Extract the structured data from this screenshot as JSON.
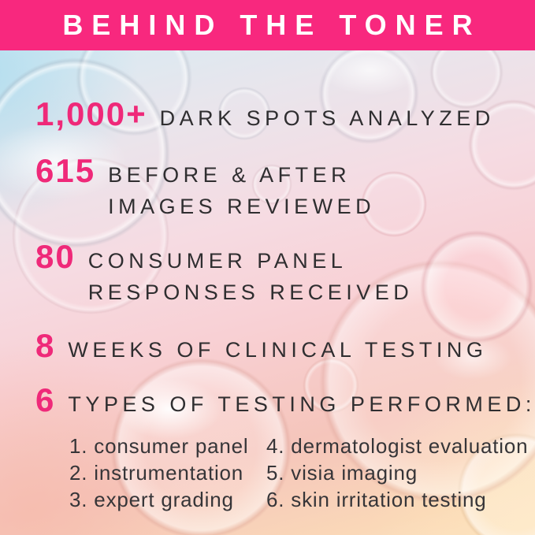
{
  "header": {
    "title": "BEHIND THE TONER"
  },
  "stats": [
    {
      "number": "1,000+",
      "lines": [
        "DARK SPOTS ANALYZED"
      ]
    },
    {
      "number": "615",
      "lines": [
        "BEFORE & AFTER",
        "IMAGES REVIEWED"
      ]
    },
    {
      "number": "80",
      "lines": [
        "CONSUMER PANEL",
        "RESPONSES RECEIVED"
      ]
    },
    {
      "number": "8",
      "lines": [
        "WEEKS OF CLINICAL TESTING"
      ]
    },
    {
      "number": "6",
      "lines": [
        "TYPES OF TESTING PERFORMED:"
      ]
    }
  ],
  "testing_types": {
    "column1": [
      "1. consumer panel",
      "2. instrumentation",
      "3. expert grading"
    ],
    "column2": [
      "4. dermatologist evaluation",
      "5. visia imaging",
      "6. skin irritation testing"
    ]
  },
  "colors": {
    "header_background": "#f8287e",
    "number_pink": "#ef2979",
    "text_dark": "#2f2e30"
  }
}
